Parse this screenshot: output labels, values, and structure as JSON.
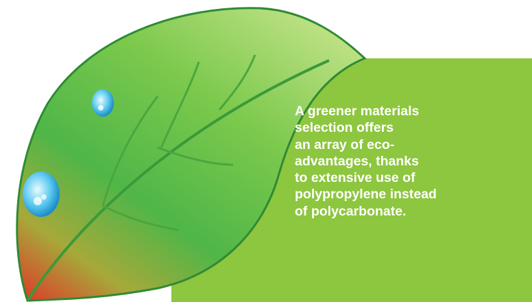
{
  "text": {
    "lines": [
      "A greener materials",
      "selection offers",
      "an array of eco-",
      "advantages, thanks",
      "to extensive use of",
      "polypropylene instead",
      "of polycarbonate."
    ]
  }
}
